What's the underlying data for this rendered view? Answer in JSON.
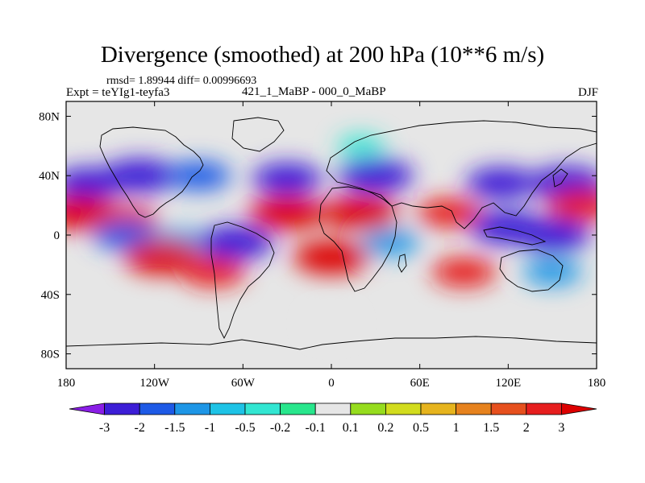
{
  "plot": {
    "title": "Divergence (smoothed) at 200 hPa (10**6 m/s)",
    "stats": "rmsd= 1.89944 diff= 0.00996693",
    "expt": "Expt = teYIg1-teyfa3",
    "diff_label": "421_1_MaBP - 000_0_MaBP",
    "season": "DJF"
  },
  "chart_data": {
    "type": "heatmap",
    "title": "Divergence (smoothed) at 200 hPa (10**6 m/s)",
    "x_range": [
      -180,
      180
    ],
    "y_range": [
      -90,
      90
    ],
    "x_ticks": [
      {
        "value": -180,
        "label": "180"
      },
      {
        "value": -120,
        "label": "120W"
      },
      {
        "value": -60,
        "label": "60W"
      },
      {
        "value": 0,
        "label": "0"
      },
      {
        "value": 60,
        "label": "60E"
      },
      {
        "value": 120,
        "label": "120E"
      },
      {
        "value": 180,
        "label": "180"
      }
    ],
    "y_ticks": [
      {
        "value": 80,
        "label": "80N"
      },
      {
        "value": 40,
        "label": "40N"
      },
      {
        "value": 0,
        "label": "0"
      },
      {
        "value": -40,
        "label": "40S"
      },
      {
        "value": -80,
        "label": "80S"
      }
    ],
    "colorbar": {
      "labels": [
        "-3",
        "-2",
        "-1.5",
        "-1",
        "-0.5",
        "-0.2",
        "-0.1",
        "0.1",
        "0.2",
        "0.5",
        "1",
        "1.5",
        "2",
        "3"
      ],
      "colors": [
        "#8a1ee6",
        "#3c1ed6",
        "#1e5ae6",
        "#1e96e6",
        "#1ec3e6",
        "#32e6d2",
        "#28e68c",
        "#e6e6e6",
        "#96dc1e",
        "#d2dc1e",
        "#e6b41e",
        "#e6821e",
        "#e6501e",
        "#e61e1e",
        "#dc0000"
      ]
    },
    "anomalies": [
      {
        "lon": -165,
        "lat": 35,
        "value": -2.5
      },
      {
        "lon": -130,
        "lat": 40,
        "value": -3
      },
      {
        "lon": -90,
        "lat": 40,
        "value": -2
      },
      {
        "lon": -30,
        "lat": 38,
        "value": -2.5
      },
      {
        "lon": 30,
        "lat": 40,
        "value": -3
      },
      {
        "lon": 115,
        "lat": 35,
        "value": -2.5
      },
      {
        "lon": 160,
        "lat": 35,
        "value": -3
      },
      {
        "lon": -170,
        "lat": 15,
        "value": 3
      },
      {
        "lon": -140,
        "lat": 10,
        "value": 2
      },
      {
        "lon": -30,
        "lat": 15,
        "value": 3
      },
      {
        "lon": 20,
        "lat": 15,
        "value": 3
      },
      {
        "lon": 80,
        "lat": 15,
        "value": 2
      },
      {
        "lon": 170,
        "lat": 20,
        "value": 2.5
      },
      {
        "lon": -140,
        "lat": 0,
        "value": -2
      },
      {
        "lon": -105,
        "lat": -5,
        "value": -1.5
      },
      {
        "lon": -65,
        "lat": -5,
        "value": -3
      },
      {
        "lon": 40,
        "lat": -5,
        "value": -1.5
      },
      {
        "lon": 120,
        "lat": 5,
        "value": -3
      },
      {
        "lon": 150,
        "lat": 0,
        "value": -3
      },
      {
        "lon": -115,
        "lat": -15,
        "value": 3
      },
      {
        "lon": -80,
        "lat": -25,
        "value": 2
      },
      {
        "lon": 0,
        "lat": -15,
        "value": 3
      },
      {
        "lon": 90,
        "lat": -25,
        "value": 2
      },
      {
        "lon": 150,
        "lat": -25,
        "value": -1.5
      },
      {
        "lon": 0,
        "lat": -60,
        "value": 0
      },
      {
        "lon": 20,
        "lat": 60,
        "value": -0.5
      }
    ]
  }
}
